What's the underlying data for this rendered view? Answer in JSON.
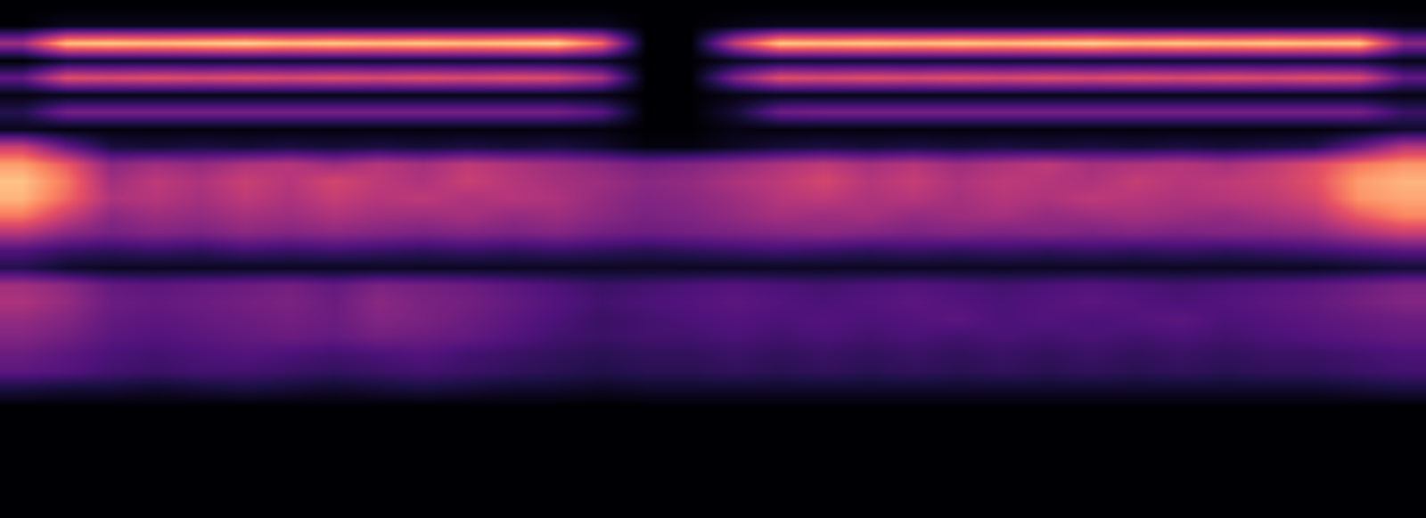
{
  "chart_data": {
    "type": "heatmap",
    "tick_labels": false,
    "grid": false,
    "zlim": [
      0,
      100
    ],
    "cells": [
      [
        0,
        0,
        0,
        0,
        0,
        0,
        0,
        0,
        0,
        0,
        0,
        0,
        0,
        0,
        0,
        0,
        0,
        0,
        0,
        0,
        0,
        0,
        0,
        0,
        0,
        0,
        0,
        0,
        0,
        0,
        0,
        0
      ],
      [
        0,
        5,
        5,
        5,
        5,
        5,
        5,
        5,
        5,
        5,
        5,
        5,
        5,
        5,
        0,
        0,
        3,
        5,
        5,
        5,
        5,
        5,
        5,
        5,
        5,
        5,
        5,
        5,
        5,
        5,
        5,
        3
      ],
      [
        45,
        88,
        90,
        88,
        90,
        92,
        88,
        90,
        88,
        90,
        88,
        90,
        92,
        70,
        0,
        0,
        55,
        90,
        88,
        90,
        88,
        90,
        88,
        90,
        92,
        88,
        90,
        88,
        90,
        88,
        90,
        40
      ],
      [
        0,
        8,
        8,
        8,
        8,
        8,
        8,
        8,
        8,
        8,
        8,
        8,
        8,
        6,
        0,
        0,
        5,
        8,
        8,
        8,
        8,
        8,
        8,
        8,
        8,
        8,
        8,
        8,
        8,
        8,
        8,
        4
      ],
      [
        30,
        62,
        60,
        62,
        60,
        62,
        60,
        62,
        60,
        62,
        60,
        62,
        60,
        48,
        0,
        0,
        38,
        62,
        60,
        62,
        60,
        62,
        60,
        62,
        60,
        62,
        60,
        62,
        60,
        62,
        60,
        30
      ],
      [
        3,
        4,
        4,
        4,
        4,
        4,
        4,
        4,
        4,
        4,
        4,
        4,
        4,
        3,
        0,
        0,
        3,
        4,
        4,
        4,
        4,
        4,
        4,
        4,
        4,
        4,
        4,
        4,
        4,
        4,
        4,
        3
      ],
      [
        15,
        35,
        35,
        35,
        35,
        35,
        35,
        35,
        35,
        35,
        35,
        35,
        35,
        28,
        0,
        0,
        10,
        33,
        35,
        35,
        35,
        35,
        35,
        35,
        35,
        35,
        35,
        35,
        35,
        35,
        35,
        20
      ],
      [
        5,
        2,
        2,
        2,
        2,
        2,
        2,
        2,
        2,
        2,
        2,
        2,
        2,
        2,
        0,
        0,
        3,
        2,
        2,
        2,
        2,
        2,
        2,
        2,
        2,
        2,
        2,
        2,
        2,
        2,
        3,
        8
      ],
      [
        55,
        30,
        12,
        10,
        12,
        10,
        12,
        10,
        12,
        10,
        12,
        10,
        12,
        8,
        2,
        2,
        6,
        10,
        12,
        10,
        12,
        10,
        12,
        10,
        12,
        10,
        12,
        10,
        12,
        14,
        30,
        50
      ],
      [
        80,
        65,
        40,
        45,
        42,
        48,
        50,
        44,
        50,
        46,
        52,
        48,
        44,
        40,
        35,
        38,
        42,
        48,
        52,
        46,
        50,
        44,
        48,
        52,
        46,
        48,
        50,
        46,
        52,
        60,
        72,
        78
      ],
      [
        88,
        72,
        45,
        52,
        48,
        55,
        50,
        58,
        52,
        48,
        55,
        50,
        46,
        44,
        40,
        42,
        48,
        52,
        58,
        50,
        54,
        48,
        52,
        50,
        48,
        54,
        50,
        52,
        55,
        62,
        80,
        85
      ],
      [
        85,
        68,
        48,
        50,
        46,
        52,
        48,
        54,
        50,
        52,
        48,
        50,
        48,
        42,
        38,
        40,
        44,
        50,
        52,
        48,
        50,
        46,
        50,
        48,
        52,
        50,
        48,
        50,
        52,
        58,
        78,
        82
      ],
      [
        72,
        55,
        40,
        44,
        42,
        46,
        44,
        48,
        45,
        44,
        46,
        42,
        44,
        40,
        36,
        38,
        42,
        46,
        44,
        46,
        42,
        44,
        46,
        42,
        44,
        46,
        44,
        42,
        46,
        50,
        65,
        75
      ],
      [
        50,
        40,
        35,
        38,
        36,
        40,
        38,
        40,
        38,
        36,
        38,
        36,
        38,
        34,
        32,
        34,
        36,
        38,
        40,
        38,
        36,
        38,
        36,
        38,
        36,
        38,
        36,
        38,
        38,
        40,
        48,
        55
      ],
      [
        25,
        20,
        18,
        20,
        18,
        22,
        20,
        22,
        20,
        18,
        20,
        18,
        20,
        18,
        16,
        18,
        20,
        22,
        20,
        18,
        20,
        18,
        20,
        18,
        20,
        18,
        20,
        18,
        20,
        22,
        25,
        28
      ],
      [
        15,
        8,
        6,
        6,
        6,
        6,
        6,
        6,
        6,
        6,
        6,
        6,
        6,
        6,
        6,
        6,
        6,
        6,
        6,
        6,
        6,
        6,
        6,
        6,
        6,
        6,
        6,
        6,
        6,
        6,
        8,
        10
      ],
      [
        45,
        40,
        30,
        28,
        30,
        32,
        34,
        30,
        36,
        34,
        32,
        28,
        24,
        20,
        22,
        24,
        26,
        24,
        22,
        24,
        26,
        24,
        22,
        24,
        26,
        24,
        22,
        24,
        26,
        28,
        32,
        36
      ],
      [
        48,
        42,
        32,
        30,
        32,
        34,
        36,
        32,
        40,
        36,
        34,
        30,
        26,
        22,
        24,
        26,
        28,
        26,
        24,
        26,
        28,
        26,
        24,
        26,
        28,
        26,
        24,
        26,
        28,
        30,
        34,
        38
      ],
      [
        42,
        38,
        30,
        28,
        30,
        32,
        34,
        32,
        38,
        36,
        32,
        28,
        24,
        20,
        22,
        24,
        26,
        24,
        26,
        24,
        26,
        28,
        24,
        26,
        24,
        26,
        28,
        24,
        26,
        28,
        30,
        32
      ],
      [
        38,
        34,
        28,
        26,
        28,
        30,
        32,
        30,
        34,
        32,
        30,
        26,
        22,
        20,
        22,
        22,
        24,
        22,
        24,
        22,
        24,
        22,
        24,
        22,
        24,
        22,
        24,
        22,
        24,
        26,
        28,
        30
      ],
      [
        32,
        28,
        24,
        22,
        24,
        26,
        24,
        22,
        24,
        26,
        22,
        20,
        18,
        16,
        18,
        18,
        20,
        18,
        20,
        18,
        20,
        18,
        20,
        18,
        20,
        18,
        20,
        18,
        20,
        20,
        22,
        24
      ],
      [
        28,
        26,
        22,
        20,
        22,
        22,
        20,
        18,
        20,
        22,
        20,
        18,
        16,
        14,
        16,
        16,
        18,
        16,
        18,
        16,
        18,
        16,
        18,
        16,
        18,
        16,
        18,
        16,
        18,
        18,
        20,
        22
      ],
      [
        12,
        10,
        10,
        8,
        10,
        12,
        10,
        8,
        10,
        12,
        10,
        8,
        8,
        6,
        8,
        8,
        8,
        8,
        8,
        8,
        8,
        8,
        8,
        8,
        8,
        8,
        8,
        8,
        8,
        8,
        10,
        12
      ],
      [
        0,
        0,
        0,
        0,
        0,
        0,
        0,
        0,
        0,
        0,
        0,
        0,
        0,
        0,
        0,
        0,
        0,
        0,
        0,
        0,
        0,
        0,
        0,
        0,
        0,
        0,
        0,
        0,
        0,
        0,
        0,
        0
      ],
      [
        0,
        0,
        0,
        0,
        0,
        0,
        0,
        0,
        0,
        0,
        0,
        0,
        0,
        0,
        0,
        0,
        0,
        0,
        0,
        0,
        0,
        0,
        0,
        0,
        0,
        0,
        0,
        0,
        0,
        0,
        0,
        0
      ],
      [
        0,
        0,
        0,
        0,
        0,
        0,
        0,
        0,
        0,
        0,
        0,
        0,
        0,
        0,
        0,
        0,
        0,
        0,
        0,
        0,
        0,
        0,
        0,
        0,
        0,
        0,
        0,
        0,
        0,
        0,
        0,
        0
      ],
      [
        0,
        0,
        0,
        0,
        0,
        0,
        0,
        0,
        0,
        0,
        0,
        0,
        0,
        0,
        0,
        0,
        0,
        0,
        0,
        0,
        0,
        0,
        0,
        0,
        0,
        0,
        0,
        0,
        0,
        0,
        0,
        0
      ],
      [
        0,
        0,
        0,
        0,
        0,
        0,
        0,
        0,
        0,
        0,
        0,
        0,
        0,
        0,
        0,
        0,
        0,
        0,
        0,
        0,
        0,
        0,
        0,
        0,
        0,
        0,
        0,
        0,
        0,
        0,
        0,
        0
      ],
      [
        0,
        0,
        0,
        0,
        0,
        0,
        0,
        0,
        0,
        0,
        0,
        0,
        0,
        0,
        0,
        0,
        0,
        0,
        0,
        0,
        0,
        0,
        0,
        0,
        0,
        0,
        0,
        0,
        0,
        0,
        0,
        0
      ],
      [
        0,
        0,
        0,
        0,
        0,
        0,
        0,
        0,
        0,
        0,
        0,
        0,
        0,
        0,
        0,
        0,
        0,
        0,
        0,
        0,
        0,
        0,
        0,
        0,
        0,
        0,
        0,
        0,
        0,
        0,
        0,
        0
      ]
    ]
  }
}
